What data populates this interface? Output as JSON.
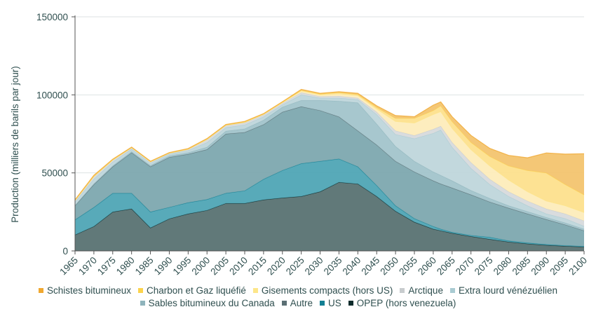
{
  "chart_data": {
    "type": "area",
    "stacked": true,
    "title": "",
    "xlabel": "",
    "ylabel": "Production (milliers de barils par jour)",
    "ylim": [
      0,
      150000
    ],
    "xlim": [
      1965,
      2100
    ],
    "yticks": [
      "0",
      "50000",
      "100000",
      "150000"
    ],
    "xticks": [
      "1965",
      "1970",
      "1975",
      "1980",
      "1985",
      "1990",
      "1995",
      "2000",
      "2005",
      "2010",
      "2015",
      "2020",
      "2025",
      "2030",
      "2035",
      "2040",
      "2045",
      "2050",
      "2055",
      "2060",
      "2065",
      "2070",
      "2075",
      "2080",
      "2085",
      "2090",
      "2095",
      "2100"
    ],
    "grid": "horizontal",
    "legend_position": "bottom",
    "x": [
      1965,
      1970,
      1975,
      1980,
      1985,
      1990,
      1995,
      2000,
      2005,
      2010,
      2015,
      2020,
      2025,
      2030,
      2035,
      2040,
      2045,
      2050,
      2055,
      2060,
      2062,
      2065,
      2070,
      2075,
      2080,
      2085,
      2090,
      2095,
      2100
    ],
    "series": [
      {
        "name": "OPEP (hors venezuela)",
        "color": "#0d2b2b",
        "fill": "#546e6e",
        "values": [
          10300,
          15700,
          25000,
          27000,
          14800,
          20600,
          23800,
          26000,
          30500,
          30500,
          32800,
          34000,
          35000,
          38000,
          44000,
          43000,
          35000,
          25500,
          18500,
          14000,
          13000,
          11400,
          9300,
          7500,
          5800,
          4600,
          3700,
          3100,
          2600
        ]
      },
      {
        "name": "US",
        "color": "#127f93",
        "fill": "#4aa3b3",
        "values": [
          9700,
          12300,
          12000,
          10000,
          10200,
          7400,
          7200,
          7000,
          6500,
          8100,
          13200,
          17600,
          21000,
          19500,
          15000,
          11000,
          7000,
          3500,
          2300,
          1700,
          1000,
          600,
          700,
          1300,
          700,
          600,
          500,
          400,
          400
        ]
      },
      {
        "name": "Autre",
        "color": "#5b6f74",
        "fill": "#7aa5ad",
        "values": [
          9000,
          14600,
          17000,
          26000,
          29000,
          32000,
          31000,
          32000,
          38000,
          37400,
          35000,
          37400,
          36500,
          32500,
          27000,
          23000,
          26000,
          28500,
          29900,
          29300,
          29000,
          28400,
          26000,
          22600,
          21000,
          18600,
          16000,
          13300,
          10000
        ]
      },
      {
        "name": "Sables bitumineux du Canada",
        "color": "#8fb4bc",
        "fill": "#9fc2ca",
        "values": [
          300,
          500,
          600,
          700,
          800,
          900,
          1000,
          1500,
          1800,
          2300,
          2800,
          3200,
          4000,
          6500,
          10000,
          18000,
          13400,
          9500,
          6800,
          5700,
          5500,
          4600,
          2800,
          2300,
          1500,
          1500,
          1300,
          1200,
          1000
        ]
      },
      {
        "name": "Extra lourd vénézuélien",
        "color": "#a9cbd2",
        "fill": "#bdd5da",
        "values": [
          2000,
          3000,
          2400,
          1600,
          1500,
          1200,
          1400,
          3000,
          2300,
          2500,
          2200,
          1500,
          3500,
          1500,
          2000,
          2000,
          6100,
          7700,
          14500,
          24700,
          29000,
          21500,
          14200,
          8900,
          6000,
          3700,
          2300,
          2800,
          1900
        ]
      },
      {
        "name": "Arctique",
        "color": "#c8ccce",
        "fill": "#d6d9db",
        "values": [
          1000,
          1600,
          1200,
          800,
          800,
          500,
          700,
          1800,
          1300,
          1400,
          1200,
          1000,
          1500,
          1000,
          1200,
          1000,
          1500,
          2300,
          2000,
          2600,
          2500,
          3100,
          3700,
          3400,
          3000,
          3000,
          3200,
          3000,
          3400
        ]
      },
      {
        "name": "Gisements compacts (hors US)",
        "color": "#fde68a",
        "fill": "#fdecb8",
        "values": [
          0,
          0,
          0,
          0,
          0,
          0,
          0,
          100,
          100,
          200,
          300,
          400,
          1000,
          1000,
          1500,
          1500,
          2000,
          6000,
          8000,
          9500,
          9300,
          9000,
          8300,
          8500,
          7500,
          6000,
          5000,
          5200,
          5400
        ]
      },
      {
        "name": "Charbon et Gaz liquéfié",
        "color": "#fcd34d",
        "fill": "#fde08a",
        "values": [
          200,
          300,
          300,
          200,
          200,
          200,
          200,
          300,
          300,
          300,
          300,
          300,
          500,
          600,
          800,
          800,
          1000,
          2000,
          3000,
          2500,
          3700,
          4400,
          4600,
          6100,
          9000,
          13600,
          18000,
          13600,
          11300
        ]
      },
      {
        "name": "Schistes bitumineux",
        "color": "#f0a830",
        "fill": "#f3c26a",
        "values": [
          300,
          500,
          300,
          200,
          200,
          200,
          300,
          300,
          200,
          300,
          200,
          200,
          500,
          400,
          500,
          700,
          1000,
          1700,
          1000,
          3400,
          2500,
          3000,
          4400,
          5100,
          6700,
          8100,
          12800,
          19400,
          26300
        ]
      }
    ]
  }
}
